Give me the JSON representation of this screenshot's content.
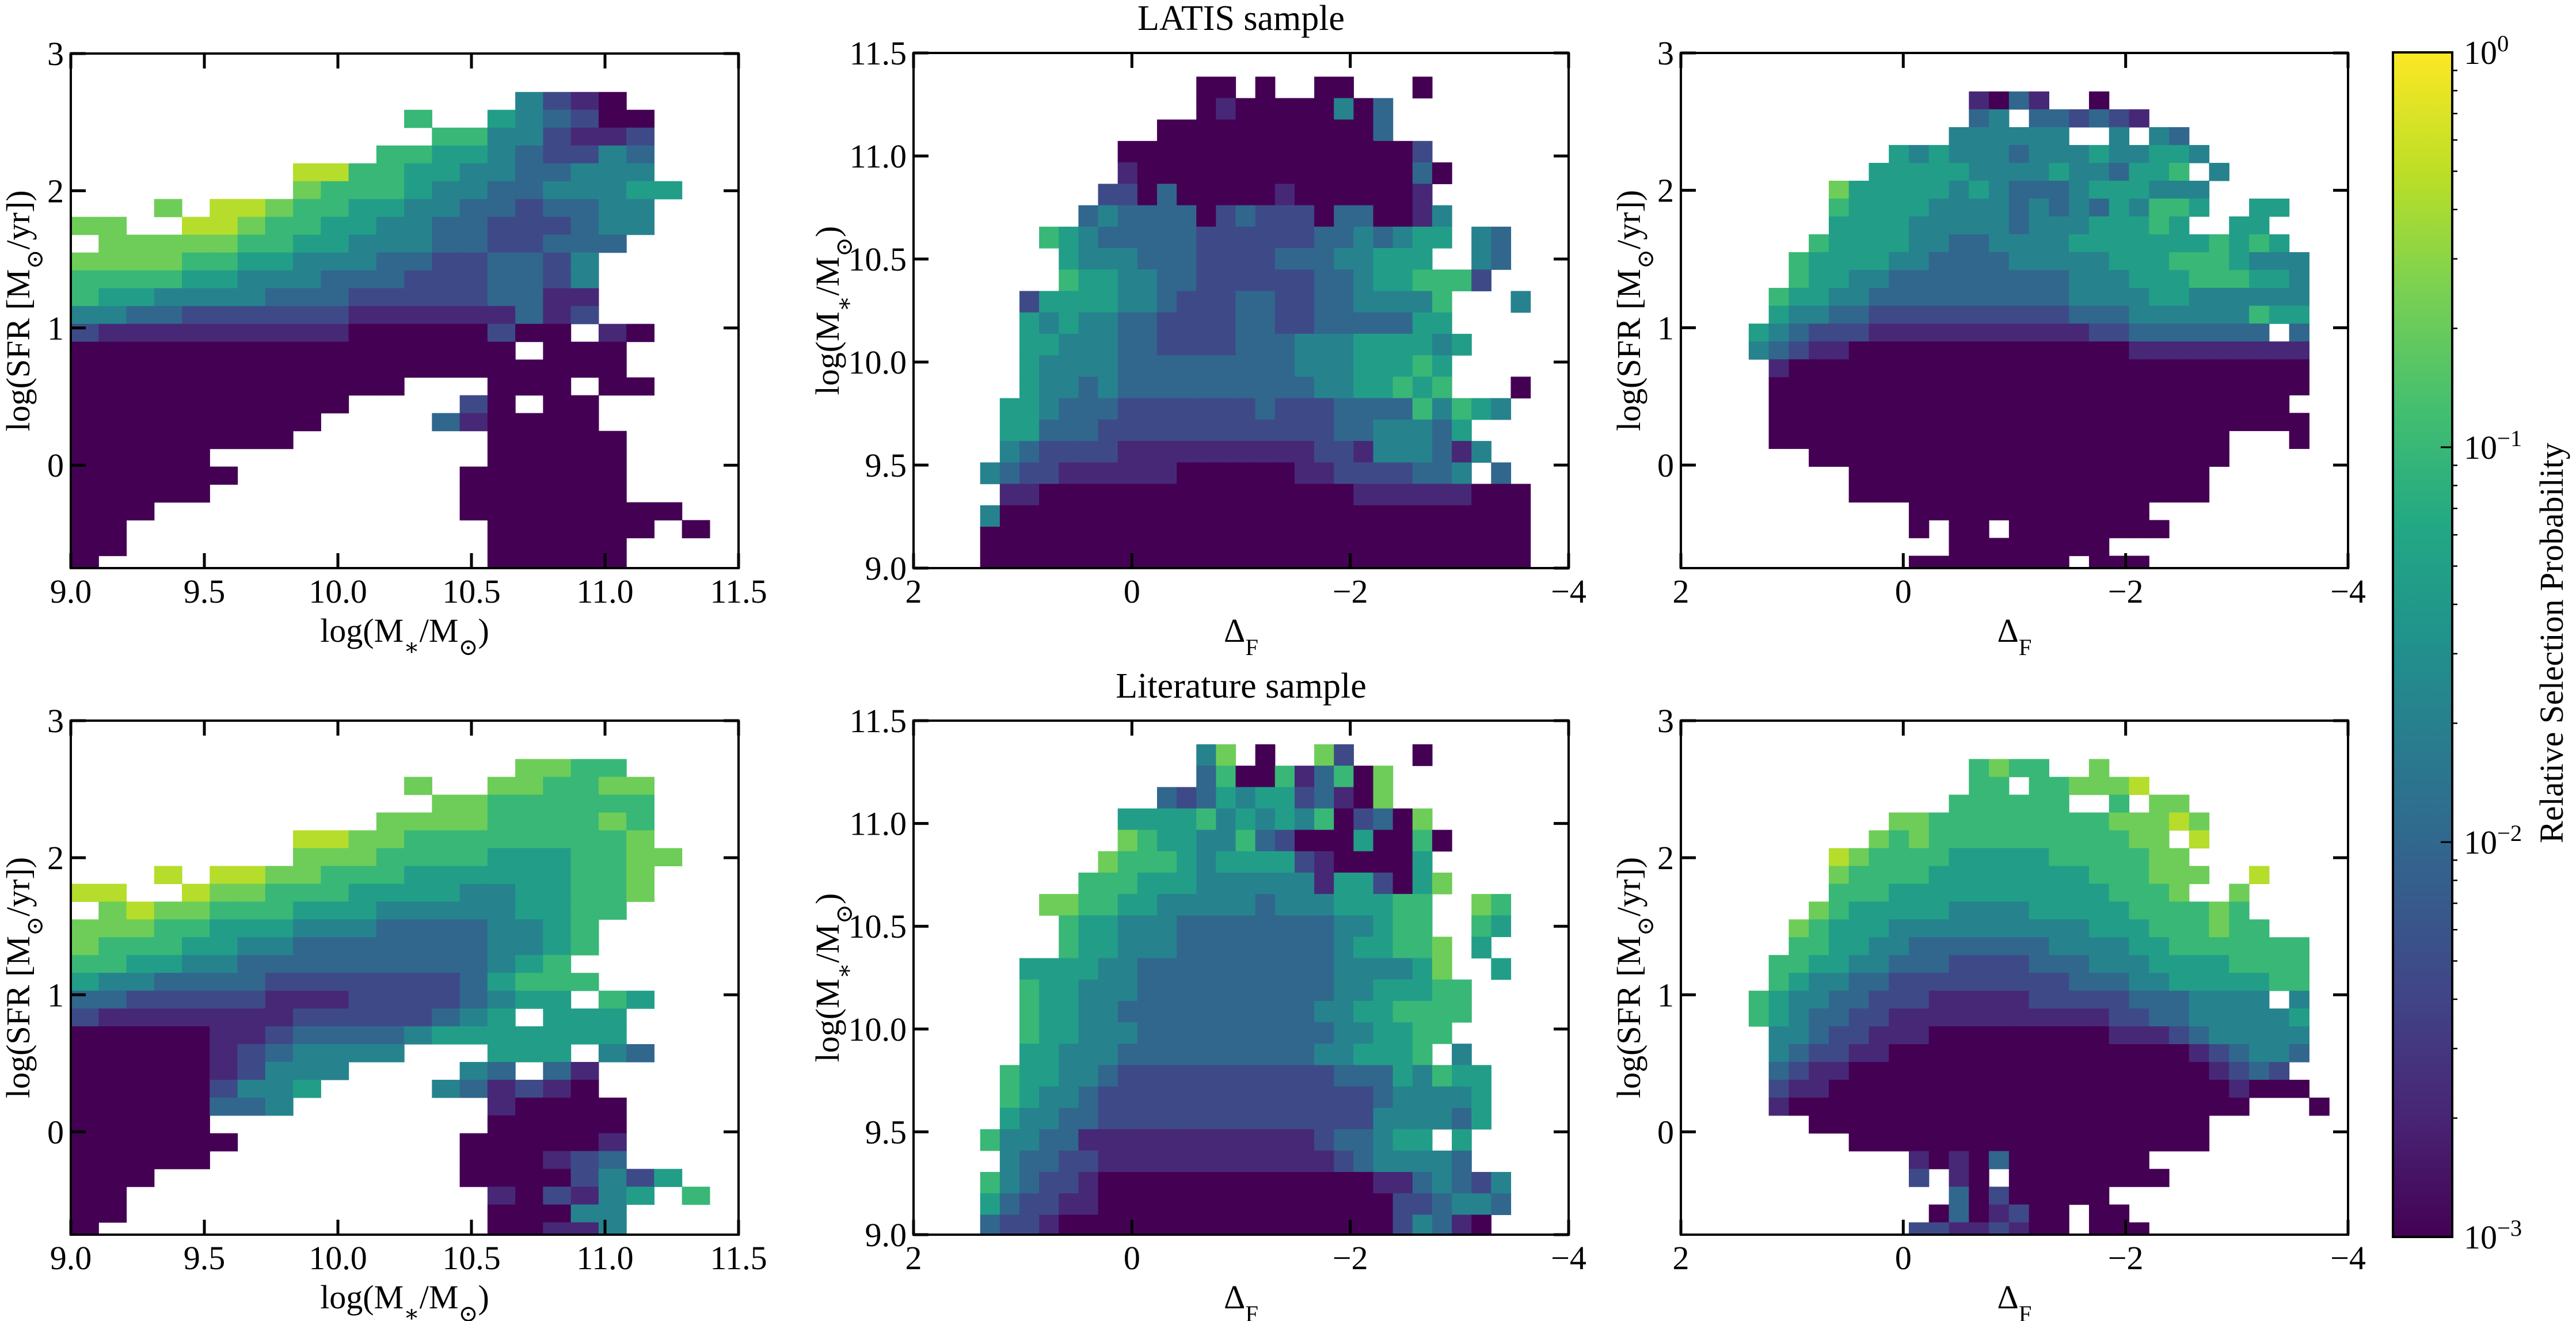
{
  "figure": {
    "value_encoding": "Each grid character is a digit d: log10(probability) = -3 + d/3 (0 = 1e-3, 9 = 1e0); '.' = empty bin"
  },
  "colorbar": {
    "label": "Relative Selection Probability",
    "scale": "log",
    "range": [
      0.001,
      1
    ],
    "colormap": "viridis",
    "ticks": [
      {
        "value": 1,
        "label": [
          "10",
          "0"
        ]
      },
      {
        "value": 0.1,
        "label": [
          "10",
          "−1"
        ]
      },
      {
        "value": 0.01,
        "label": [
          "10",
          "−2"
        ]
      },
      {
        "value": 0.001,
        "label": [
          "10",
          "−3"
        ]
      }
    ]
  },
  "chart_data": [
    {
      "type": "heatmap",
      "row": "LATIS sample",
      "xlabel": [
        "log(M",
        "∗",
        "/M",
        "⊙",
        ")"
      ],
      "ylabel": [
        "log(SFR [M",
        "⊙",
        "/yr])"
      ],
      "xlim": [
        9.0,
        11.5
      ],
      "ylim": [
        -0.75,
        3
      ],
      "xticks": [
        9.0,
        9.5,
        10.0,
        10.5,
        11.0,
        11.5
      ],
      "xticklabels": [
        "9.0",
        "9.5",
        "10.0",
        "10.5",
        "11.0",
        "11.5"
      ],
      "yticks": [
        0,
        1,
        2,
        3
      ],
      "yticklabels": [
        "0",
        "1",
        "2",
        "3"
      ],
      "grid": {
        "x_start": 9.0,
        "x_step": 0.104,
        "y_top": 2.72,
        "y_step": 0.13,
        "rows": [
          "................4210",
          "............6..543200",
          ".............66442112",
          "...........6655432243",
          "........8866554433444",
          "........76665443344455",
          "...7.8876655443323344",
          "77..88766554433222344",
          ".7777766554443322333",
          "7777665544433223324",
          "6666554443332223324",
          "6554444333222223311",
          "4433222222111111312",
          "211111111100000200.10",
          "0000000000000000.000",
          "00000000000000000000",
          "000000000000...000.00",
          "0000000000....20.00",
          "000000000....310000",
          "00000000.......00000",
          "00000..........00000",
          "000000........000000",
          "00000.........000000",
          "000...........00000000",
          "00.............000000.0",
          "00.............00000",
          "0..............00000"
        ]
      }
    },
    {
      "type": "heatmap",
      "title": "LATIS sample",
      "xlabel": [
        "Δ",
        "F"
      ],
      "ylabel": [
        "log(M",
        "∗",
        "/M",
        "⊙",
        ")"
      ],
      "xlim": [
        2,
        -4
      ],
      "ylim": [
        9.0,
        11.5
      ],
      "xticks": [
        2,
        0,
        -2,
        -4
      ],
      "xticklabels": [
        "2",
        "0",
        "−2",
        "−4"
      ],
      "yticks": [
        9.0,
        9.5,
        10.0,
        10.5,
        11.0,
        11.5
      ],
      "yticklabels": [
        "9.0",
        "9.5",
        "10.0",
        "10.5",
        "11.0",
        "11.5"
      ],
      "grid": {
        "x_start": 1.39,
        "x_step": -0.18,
        "y_top": 11.385,
        "y_step": 0.104,
        "rows": [
          "...........00.0..00...0",
          "...........0100000403",
          ".........000000000003",
          ".......0000000000000002",
          ".......10000000000000030",
          "......22030000010000001",
          ".....3433330232220330014",
          "...654333332222223343455.43",
          "....5444333222233344555..43",
          "....6554433222222334556662",
          "..2555544322233223344446...4",
          "..5454433222233223333355",
          "..55444332222333444555545",
          "..5444433333333344455565",
          "..5443433333333334455656...0",
          ".55433322222223222333364654",
          ".553332222222222223344435",
          ".4322221111111111221444314",
          "4322111111000000112222334.3",
          ".110000000000000000111111000",
          "4000000000000000000000000000",
          "0000000000000000000000000000",
          "0000000000000000000000000000"
        ]
      }
    },
    {
      "type": "heatmap",
      "xlabel": [
        "Δ",
        "F"
      ],
      "ylabel": [
        "log(SFR [M",
        "⊙",
        "/yr])"
      ],
      "xlim": [
        2,
        -4
      ],
      "ylim": [
        -0.75,
        3
      ],
      "xticks": [
        2,
        0,
        -2,
        -4
      ],
      "xticklabels": [
        "2",
        "0",
        "−2",
        "−4"
      ],
      "yticks": [
        0,
        1,
        2,
        3
      ],
      "yticklabels": [
        "0",
        "1",
        "2",
        "3"
      ],
      "grid": {
        "x_start": 1.39,
        "x_step": -0.18,
        "y_top": 2.72,
        "y_step": 0.13,
        "rows": [
          "...........1031..0",
          "...........34.332321",
          "..........444444..4.43",
          ".......5454443444544554",
          "......5555544445443556.4",
          "....7555554543334555444",
          "....6555544443434354665..55",
          "....555544444344455565..55",
          "...655554433444455555556565",
          "..65555443333444445556665444",
          "..65544333333333444555666554",
          ".655443333333333444455444444",
          ".544332222222222333444444655",
          "54322211111111111223333333.3",
          "4321100000000000000111111111",
          ".100000000000000000000000000",
          ".000000000000000000000000000",
          ".00000000000000000000000000.",
          ".000000000000000000000000000",
          ".00000000000000000000000...0",
          "...000000000000000000000",
          ".....000000000000000000",
          ".....000000000000000000",
          "........000000000000",
          "........0.00.00000000",
          "..........00000000",
          "........00000000.000"
        ]
      }
    },
    {
      "type": "heatmap",
      "row": "Literature sample",
      "xlabel": [
        "log(M",
        "∗",
        "/M",
        "⊙",
        ")"
      ],
      "ylabel": [
        "log(SFR [M",
        "⊙",
        "/yr])"
      ],
      "xlim": [
        9.0,
        11.5
      ],
      "ylim": [
        -0.75,
        3
      ],
      "xticks": [
        9.0,
        9.5,
        10.0,
        10.5,
        11.0,
        11.5
      ],
      "xticklabels": [
        "9.0",
        "9.5",
        "10.0",
        "10.5",
        "11.0",
        "11.5"
      ],
      "yticks": [
        0,
        1,
        2,
        3
      ],
      "yticklabels": [
        "0",
        "1",
        "2",
        "3"
      ],
      "grid": {
        "x_start": 9.0,
        "x_step": 0.104,
        "y_top": 2.72,
        "y_step": 0.13,
        "rows": [
          "................7766",
          "............7..776677",
          ".............77666666",
          "...........7777666676",
          "........8877666666667",
          "........77766665556677",
          "...8.8877666555555667",
          "88..87766655554455667",
          ".7877666555444445566",
          "7776655544433334456",
          "7666554433333334456",
          "665544333333333456",
          "5443333222222235666",
          "332222211122223455.65",
          "2111111122222345.555",
          "00000112333345555555",
          "000001234444...555.43",
          "0000012444....43.31",
          "000002445....431210",
          "00000334.......10000",
          "00000..........00000",
          "000000........000001",
          "00000.........000123",
          "000...........00002425",
          "00.............102145.6",
          "00.............00044",
          "0..............00114"
        ]
      }
    },
    {
      "type": "heatmap",
      "title": "Literature sample",
      "xlabel": [
        "Δ",
        "F"
      ],
      "ylabel": [
        "log(M",
        "∗",
        "/M",
        "⊙",
        ")"
      ],
      "xlim": [
        2,
        -4
      ],
      "ylim": [
        9.0,
        11.5
      ],
      "xticks": [
        2,
        0,
        -2,
        -4
      ],
      "xticklabels": [
        "2",
        "0",
        "−2",
        "−4"
      ],
      "yticks": [
        9.0,
        9.5,
        10.0,
        10.5,
        11.0,
        11.5
      ],
      "yticklabels": [
        "9.0",
        "9.5",
        "10.0",
        "10.5",
        "11.0",
        "11.5"
      ],
      "grid": {
        "x_start": 1.39,
        "x_step": -0.18,
        "y_top": 11.385,
        "y_step": 0.104,
        "rows": [
          "...........47.0..72...0",
          "...........3600613607",
          ".........323545523107",
          ".......5555645454602307",
          ".......76554463200050060",
          "......76665455552100005",
          ".....6665554444441552057",
          "...77665544444344455566..76",
          "....6554443333333344566..65",
          "....65544433333333455667.5",
          "..5555443333333333444457..5",
          "..65544433333333334455566",
          "..65544333333333344556666",
          "..6554443333333333445566",
          "..554443333333333445556.4",
          ".6554432222222222233354655",
          ".6544322222222222222344445",
          ".5443322222222222222444435",
          "64433111111111111233455.5",
          ".433221111111111112344443",
          "643221000000000000001134324",
          "532211000000000000000223443",
          "32210000000000000000024310"
        ]
      }
    },
    {
      "type": "heatmap",
      "xlabel": [
        "Δ",
        "F"
      ],
      "ylabel": [
        "log(SFR [M",
        "⊙",
        "/yr])"
      ],
      "xlim": [
        2,
        -4
      ],
      "ylim": [
        -0.75,
        3
      ],
      "xticks": [
        2,
        0,
        -2,
        -4
      ],
      "xticklabels": [
        "2",
        "0",
        "−2",
        "−4"
      ],
      "yticks": [
        0,
        1,
        2,
        3
      ],
      "yticklabels": [
        "0",
        "1",
        "2",
        "3"
      ],
      "grid": {
        "x_start": 1.39,
        "x_step": -0.18,
        "y_top": 2.72,
        "y_step": 0.13,
        "rows": [
          "...........6766..7",
          "...........66.667778",
          "..........666666..6.77",
          ".......7766666666677787",
          "......767666666666677.8",
          "....876666555556666677",
          "....7666655555555666777..8",
          "....666555555555556667..7",
          "...7655555444455555666676",
          "..765554444444444555666766",
          "..66554433333334444556666666",
          ".665544333222233344455556666",
          ".654433222222222333445555566",
          "65443322211111222223334444.4",
          "6543322111111111112233444445",
          ".443221110000000001112344444",
          ".432211000000000000000123443",
          ".32110000000000000000001232.",
          ".211000000000000000000001000",
          ".100000000000000000000000...0",
          "...00000000000000000000",
          ".....000000000000000000",
          "........101030000000",
          "........2.10.00000000",
          "..........30200000",
          ".........0301200.00",
          "........22112100.000"
        ]
      }
    }
  ]
}
